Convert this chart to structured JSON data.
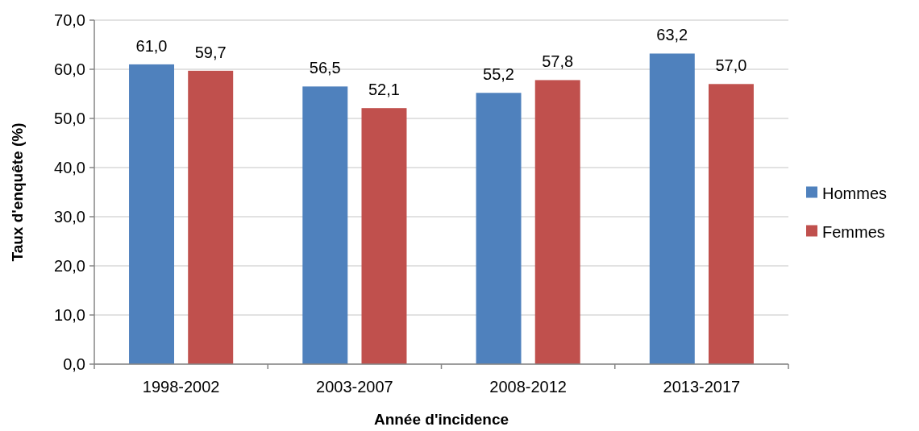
{
  "chart_data": {
    "type": "bar",
    "xlabel": "Année d'incidence",
    "ylabel": "Taux d'enquête (%)",
    "categories": [
      "1998-2002",
      "2003-2007",
      "2008-2012",
      "2013-2017"
    ],
    "series": [
      {
        "name": "Hommes",
        "color": "#4f81bd",
        "values": [
          61.0,
          56.5,
          55.2,
          63.2
        ],
        "value_labels": [
          "61,0",
          "56,5",
          "55,2",
          "63,2"
        ]
      },
      {
        "name": "Femmes",
        "color": "#c0504d",
        "values": [
          59.7,
          52.1,
          57.8,
          57.0
        ],
        "value_labels": [
          "59,7",
          "52,1",
          "57,8",
          "57,0"
        ]
      }
    ],
    "ylim": [
      0,
      70
    ],
    "yticks": [
      {
        "value": 0,
        "label": "0,0"
      },
      {
        "value": 10,
        "label": "10,0"
      },
      {
        "value": 20,
        "label": "20,0"
      },
      {
        "value": 30,
        "label": "30,0"
      },
      {
        "value": 40,
        "label": "40,0"
      },
      {
        "value": 50,
        "label": "50,0"
      },
      {
        "value": 60,
        "label": "60,0"
      },
      {
        "value": 70,
        "label": "70,0"
      }
    ],
    "grid": "y",
    "legend": "right"
  }
}
